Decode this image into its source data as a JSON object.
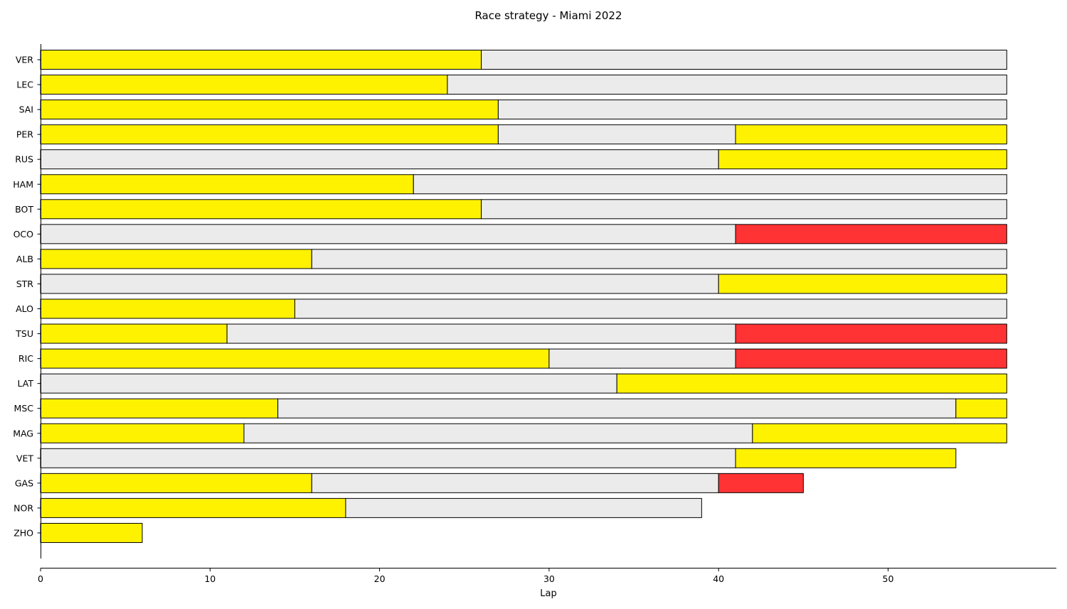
{
  "chart_data": {
    "type": "bar",
    "orientation": "horizontal",
    "stacked": true,
    "title": "Race strategy - Miami 2022",
    "xlabel": "Lap",
    "ylabel": "",
    "xlim": [
      0,
      60
    ],
    "xticks": [
      0,
      10,
      20,
      30,
      40,
      50
    ],
    "grid": false,
    "legend": "none",
    "compound_colors": {
      "SOFT": "#ff3333",
      "MEDIUM": "#fff200",
      "HARD": "#ebebeb"
    },
    "drivers": [
      {
        "driver": "VER",
        "stints": [
          {
            "compound": "MEDIUM",
            "laps": 26
          },
          {
            "compound": "HARD",
            "laps": 31
          }
        ]
      },
      {
        "driver": "LEC",
        "stints": [
          {
            "compound": "MEDIUM",
            "laps": 24
          },
          {
            "compound": "HARD",
            "laps": 33
          }
        ]
      },
      {
        "driver": "SAI",
        "stints": [
          {
            "compound": "MEDIUM",
            "laps": 27
          },
          {
            "compound": "HARD",
            "laps": 30
          }
        ]
      },
      {
        "driver": "PER",
        "stints": [
          {
            "compound": "MEDIUM",
            "laps": 27
          },
          {
            "compound": "HARD",
            "laps": 14
          },
          {
            "compound": "MEDIUM",
            "laps": 16
          }
        ]
      },
      {
        "driver": "RUS",
        "stints": [
          {
            "compound": "HARD",
            "laps": 40
          },
          {
            "compound": "MEDIUM",
            "laps": 17
          }
        ]
      },
      {
        "driver": "HAM",
        "stints": [
          {
            "compound": "MEDIUM",
            "laps": 22
          },
          {
            "compound": "HARD",
            "laps": 35
          }
        ]
      },
      {
        "driver": "BOT",
        "stints": [
          {
            "compound": "MEDIUM",
            "laps": 26
          },
          {
            "compound": "HARD",
            "laps": 31
          }
        ]
      },
      {
        "driver": "OCO",
        "stints": [
          {
            "compound": "HARD",
            "laps": 41
          },
          {
            "compound": "SOFT",
            "laps": 16
          }
        ]
      },
      {
        "driver": "ALB",
        "stints": [
          {
            "compound": "MEDIUM",
            "laps": 16
          },
          {
            "compound": "HARD",
            "laps": 41
          }
        ]
      },
      {
        "driver": "STR",
        "stints": [
          {
            "compound": "HARD",
            "laps": 40
          },
          {
            "compound": "MEDIUM",
            "laps": 17
          }
        ]
      },
      {
        "driver": "ALO",
        "stints": [
          {
            "compound": "MEDIUM",
            "laps": 15
          },
          {
            "compound": "HARD",
            "laps": 42
          }
        ]
      },
      {
        "driver": "TSU",
        "stints": [
          {
            "compound": "MEDIUM",
            "laps": 11
          },
          {
            "compound": "HARD",
            "laps": 30
          },
          {
            "compound": "SOFT",
            "laps": 16
          }
        ]
      },
      {
        "driver": "RIC",
        "stints": [
          {
            "compound": "MEDIUM",
            "laps": 30
          },
          {
            "compound": "HARD",
            "laps": 11
          },
          {
            "compound": "SOFT",
            "laps": 16
          }
        ]
      },
      {
        "driver": "LAT",
        "stints": [
          {
            "compound": "HARD",
            "laps": 34
          },
          {
            "compound": "MEDIUM",
            "laps": 23
          }
        ]
      },
      {
        "driver": "MSC",
        "stints": [
          {
            "compound": "MEDIUM",
            "laps": 14
          },
          {
            "compound": "HARD",
            "laps": 40
          },
          {
            "compound": "MEDIUM",
            "laps": 3
          }
        ]
      },
      {
        "driver": "MAG",
        "stints": [
          {
            "compound": "MEDIUM",
            "laps": 12
          },
          {
            "compound": "HARD",
            "laps": 30
          },
          {
            "compound": "MEDIUM",
            "laps": 15
          }
        ]
      },
      {
        "driver": "VET",
        "stints": [
          {
            "compound": "HARD",
            "laps": 41
          },
          {
            "compound": "MEDIUM",
            "laps": 13
          }
        ]
      },
      {
        "driver": "GAS",
        "stints": [
          {
            "compound": "MEDIUM",
            "laps": 16
          },
          {
            "compound": "HARD",
            "laps": 24
          },
          {
            "compound": "SOFT",
            "laps": 5
          }
        ]
      },
      {
        "driver": "NOR",
        "stints": [
          {
            "compound": "MEDIUM",
            "laps": 18
          },
          {
            "compound": "HARD",
            "laps": 21
          }
        ]
      },
      {
        "driver": "ZHO",
        "stints": [
          {
            "compound": "MEDIUM",
            "laps": 6
          }
        ]
      }
    ]
  }
}
